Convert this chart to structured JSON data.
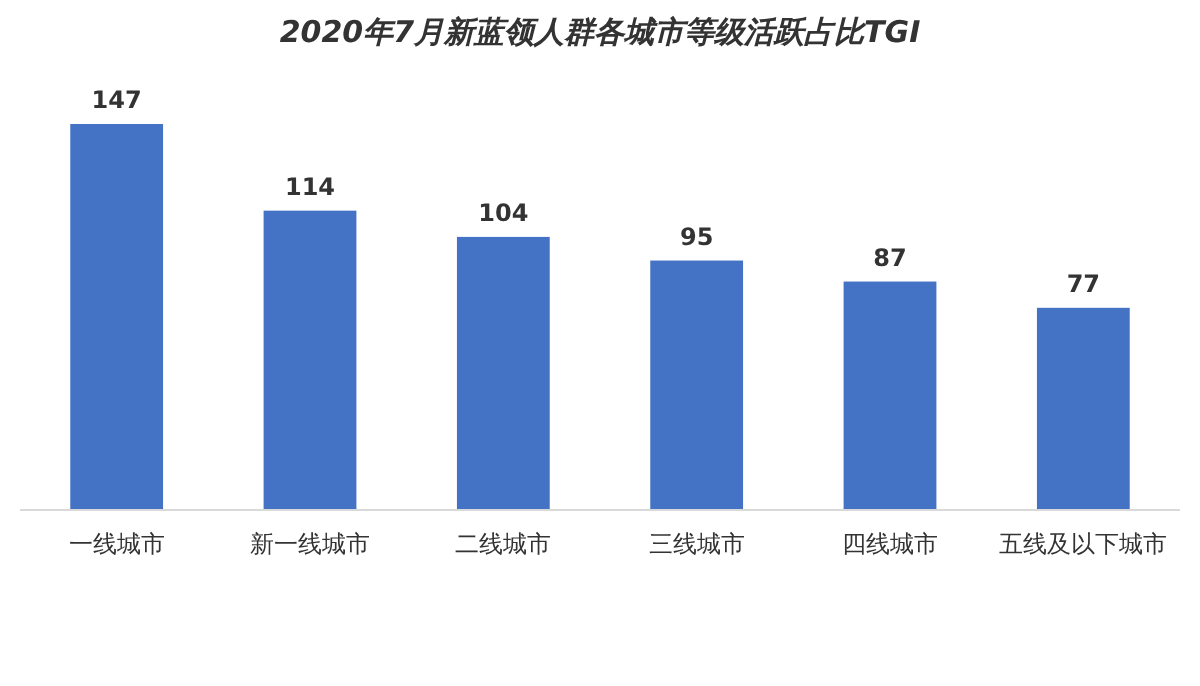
{
  "chart_data": {
    "type": "bar",
    "title": "2020年7月新蓝领人群各城市等级活跃占比TGI",
    "categories": [
      "一线城市",
      "新一线城市",
      "二线城市",
      "三线城市",
      "四线城市",
      "五线及以下城市"
    ],
    "values": [
      147,
      114,
      104,
      95,
      87,
      77
    ],
    "color": "#4472c4",
    "data_labels": true
  }
}
